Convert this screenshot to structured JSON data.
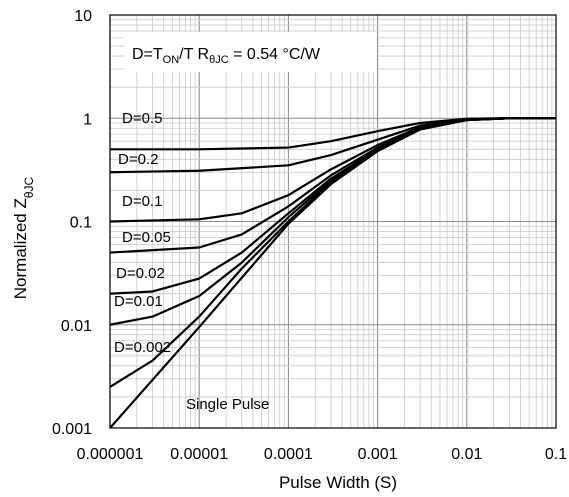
{
  "chart_data": {
    "type": "line",
    "xscale": "log",
    "yscale": "log",
    "xlim": [
      1e-06,
      0.1
    ],
    "ylim": [
      0.001,
      10
    ],
    "xticks": [
      "0.000001",
      "0.00001",
      "0.0001",
      "0.001",
      "0.01",
      "0.1"
    ],
    "yticks": [
      "0.001",
      "0.01",
      "0.1",
      "1",
      "10"
    ],
    "xlabel": "Pulse Width (S)",
    "ylabel": {
      "main": "Normalized Z",
      "sub": "θJC"
    },
    "annotation": {
      "parts": [
        {
          "text": "D=T",
          "sub": false
        },
        {
          "text": "ON",
          "sub": true
        },
        {
          "text": "/T  R",
          "sub": false
        },
        {
          "text": "θJC",
          "sub": true
        },
        {
          "text": " = 0.54 °C/W",
          "sub": false
        }
      ]
    },
    "grid": true,
    "legend": "none",
    "line_color": "#000000",
    "grid_color": "#c8c8c8",
    "series": [
      {
        "name": "D=0.5",
        "values": [
          [
            1e-06,
            0.5
          ],
          [
            1e-05,
            0.5
          ],
          [
            0.0001,
            0.52
          ],
          [
            0.0003,
            0.6
          ],
          [
            0.001,
            0.75
          ],
          [
            0.003,
            0.9
          ],
          [
            0.01,
            0.99
          ],
          [
            0.03,
            1.0
          ],
          [
            0.1,
            1.0
          ]
        ]
      },
      {
        "name": "D=0.2",
        "values": [
          [
            1e-06,
            0.3
          ],
          [
            1e-05,
            0.31
          ],
          [
            0.0001,
            0.35
          ],
          [
            0.0003,
            0.44
          ],
          [
            0.001,
            0.62
          ],
          [
            0.003,
            0.85
          ],
          [
            0.01,
            0.98
          ],
          [
            0.03,
            1.0
          ],
          [
            0.1,
            1.0
          ]
        ]
      },
      {
        "name": "D=0.1",
        "values": [
          [
            1e-06,
            0.1
          ],
          [
            1e-05,
            0.105
          ],
          [
            3e-05,
            0.12
          ],
          [
            0.0001,
            0.18
          ],
          [
            0.0003,
            0.32
          ],
          [
            0.001,
            0.55
          ],
          [
            0.003,
            0.82
          ],
          [
            0.01,
            0.97
          ],
          [
            0.03,
            1.0
          ],
          [
            0.1,
            1.0
          ]
        ]
      },
      {
        "name": "D=0.05",
        "values": [
          [
            1e-06,
            0.05
          ],
          [
            1e-05,
            0.056
          ],
          [
            3e-05,
            0.075
          ],
          [
            0.0001,
            0.14
          ],
          [
            0.0003,
            0.28
          ],
          [
            0.001,
            0.52
          ],
          [
            0.003,
            0.8
          ],
          [
            0.01,
            0.97
          ],
          [
            0.03,
            1.0
          ],
          [
            0.1,
            1.0
          ]
        ]
      },
      {
        "name": "D=0.02",
        "values": [
          [
            1e-06,
            0.02
          ],
          [
            3e-06,
            0.021
          ],
          [
            1e-05,
            0.028
          ],
          [
            3e-05,
            0.05
          ],
          [
            0.0001,
            0.12
          ],
          [
            0.0003,
            0.26
          ],
          [
            0.001,
            0.5
          ],
          [
            0.003,
            0.79
          ],
          [
            0.01,
            0.96
          ],
          [
            0.03,
            1.0
          ],
          [
            0.1,
            1.0
          ]
        ]
      },
      {
        "name": "D=0.01",
        "values": [
          [
            1e-06,
            0.01
          ],
          [
            3e-06,
            0.012
          ],
          [
            1e-05,
            0.019
          ],
          [
            3e-05,
            0.04
          ],
          [
            0.0001,
            0.11
          ],
          [
            0.0003,
            0.25
          ],
          [
            0.001,
            0.5
          ],
          [
            0.003,
            0.79
          ],
          [
            0.01,
            0.96
          ],
          [
            0.03,
            1.0
          ],
          [
            0.1,
            1.0
          ]
        ]
      },
      {
        "name": "D=0.002",
        "values": [
          [
            1e-06,
            0.0025
          ],
          [
            3e-06,
            0.0045
          ],
          [
            1e-05,
            0.012
          ],
          [
            3e-05,
            0.035
          ],
          [
            0.0001,
            0.1
          ],
          [
            0.0003,
            0.24
          ],
          [
            0.001,
            0.49
          ],
          [
            0.003,
            0.78
          ],
          [
            0.01,
            0.96
          ],
          [
            0.03,
            1.0
          ],
          [
            0.1,
            1.0
          ]
        ]
      },
      {
        "name": "Single Pulse",
        "values": [
          [
            1e-06,
            0.001
          ],
          [
            1e-05,
            0.0095
          ],
          [
            0.0001,
            0.095
          ],
          [
            0.0003,
            0.23
          ],
          [
            0.001,
            0.48
          ],
          [
            0.003,
            0.78
          ],
          [
            0.01,
            0.96
          ],
          [
            0.03,
            1.0
          ],
          [
            0.1,
            1.0
          ]
        ]
      }
    ]
  }
}
